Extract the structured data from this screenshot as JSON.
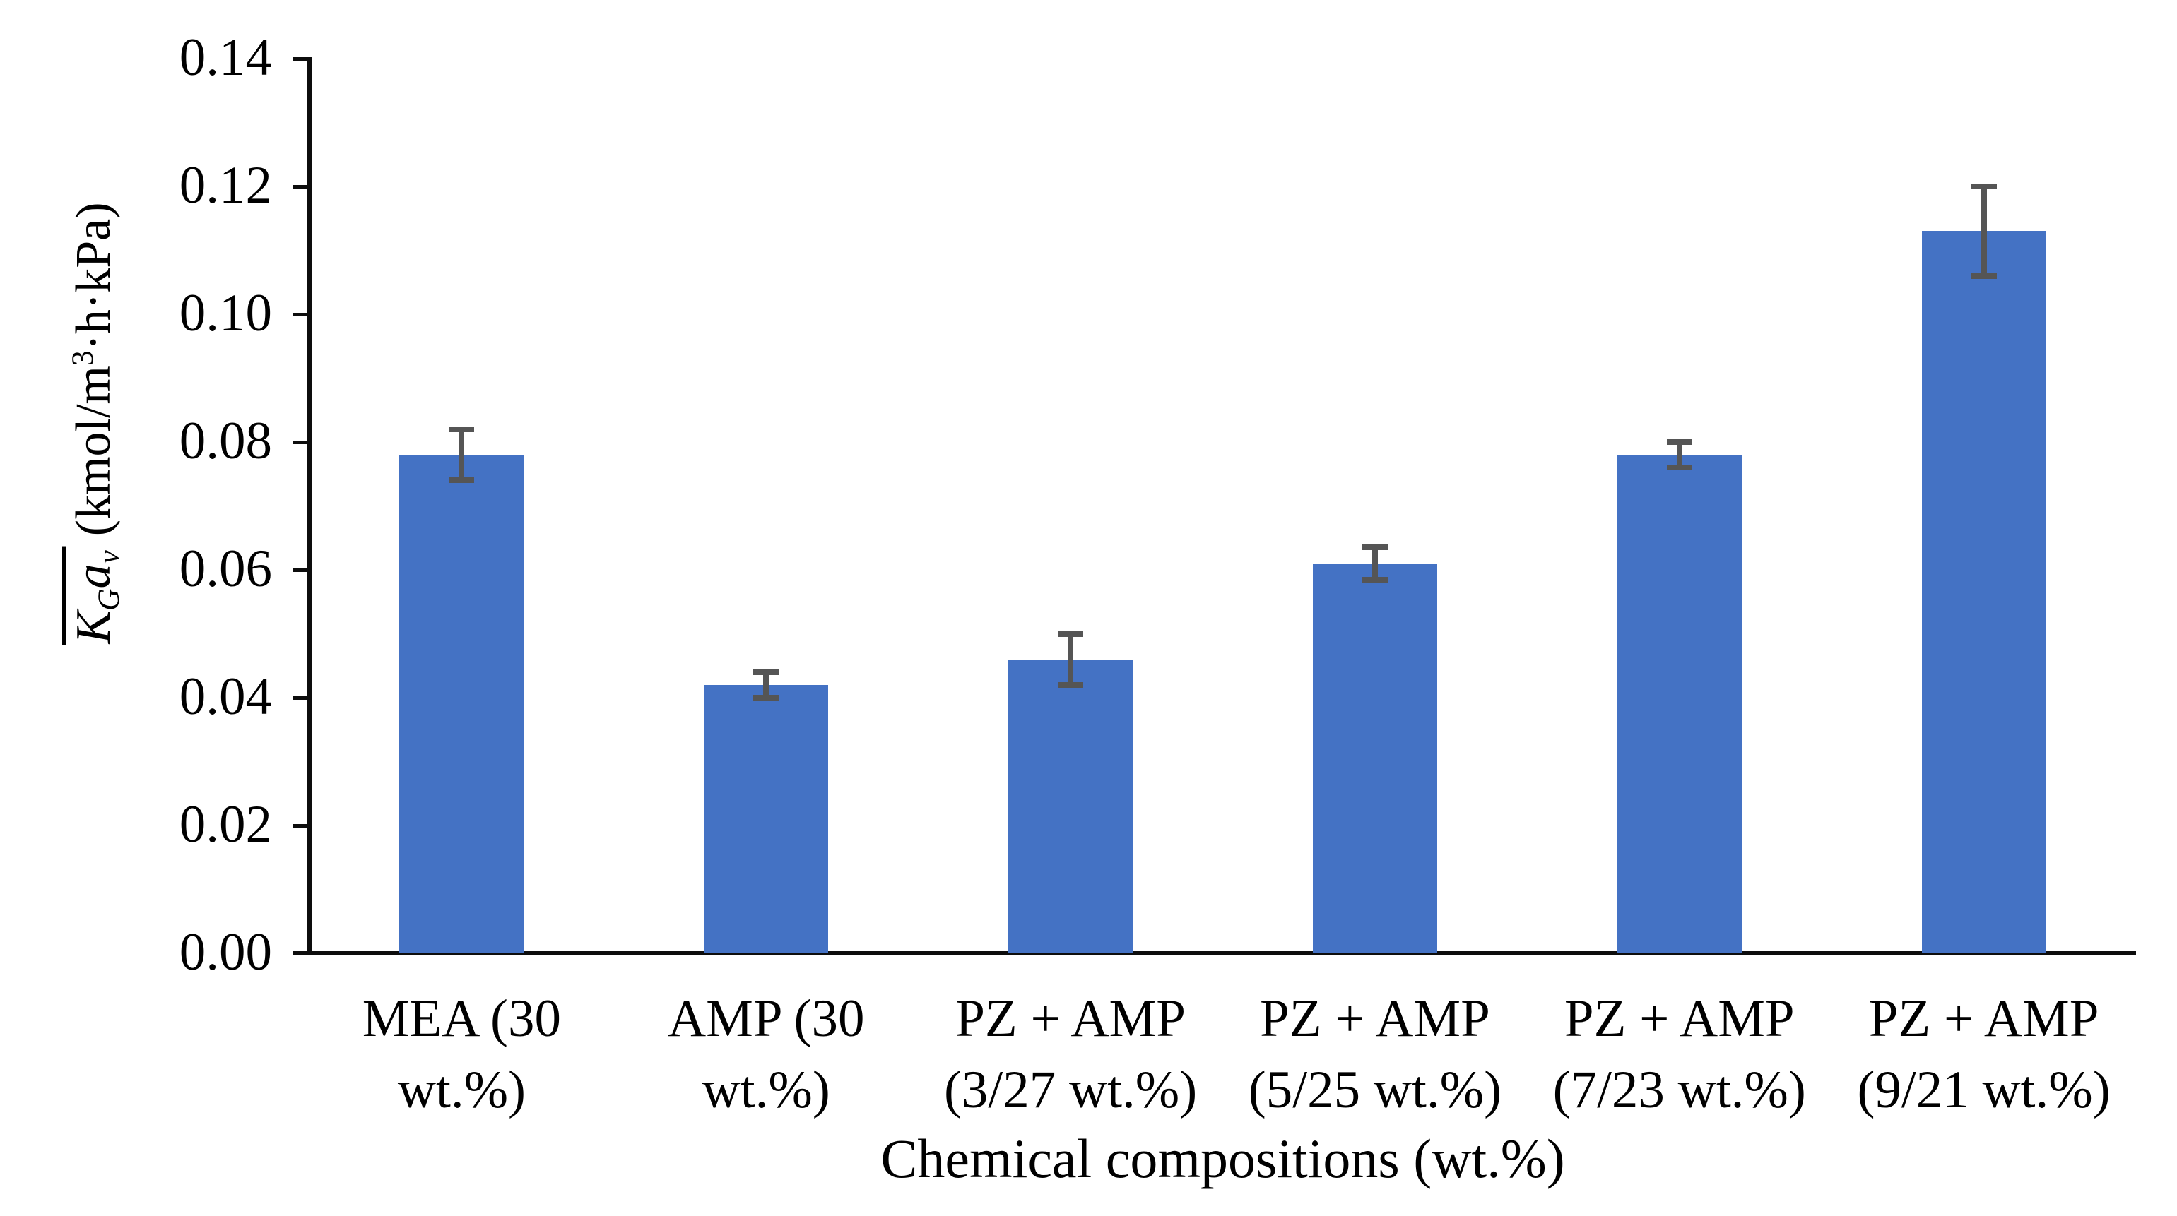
{
  "chart_data": {
    "type": "bar",
    "title": "",
    "xlabel": "Chemical compositions (wt.%)",
    "ylabel": "K̅Gav (kmol/m³·h·kPa)",
    "ylabel_parts": {
      "k": "K",
      "k_sub": "G",
      "a": "a",
      "a_sub": "v",
      "units_pre": "(kmol/m",
      "units_sup": "3",
      "units_post": "·h·kPa)"
    },
    "categories": [
      "MEA (30\nwt.%)",
      "AMP (30\nwt.%)",
      "PZ + AMP\n(3/27 wt.%)",
      "PZ + AMP\n(5/25 wt.%)",
      "PZ + AMP\n(7/23 wt.%)",
      "PZ + AMP\n(9/21 wt.%)"
    ],
    "values": [
      0.078,
      0.042,
      0.046,
      0.061,
      0.078,
      0.113
    ],
    "errors": [
      0.004,
      0.002,
      0.004,
      0.0025,
      0.002,
      0.007
    ],
    "ylim": [
      0,
      0.14
    ],
    "ytick_step": 0.02,
    "ytick_labels": [
      "0.00",
      "0.02",
      "0.04",
      "0.06",
      "0.08",
      "0.10",
      "0.12",
      "0.14"
    ],
    "grid": false,
    "legend": "none",
    "bar_color": "#4472C4",
    "error_color": "#555555",
    "axis_color": "#0d0d0d",
    "text_color": "#000000"
  }
}
